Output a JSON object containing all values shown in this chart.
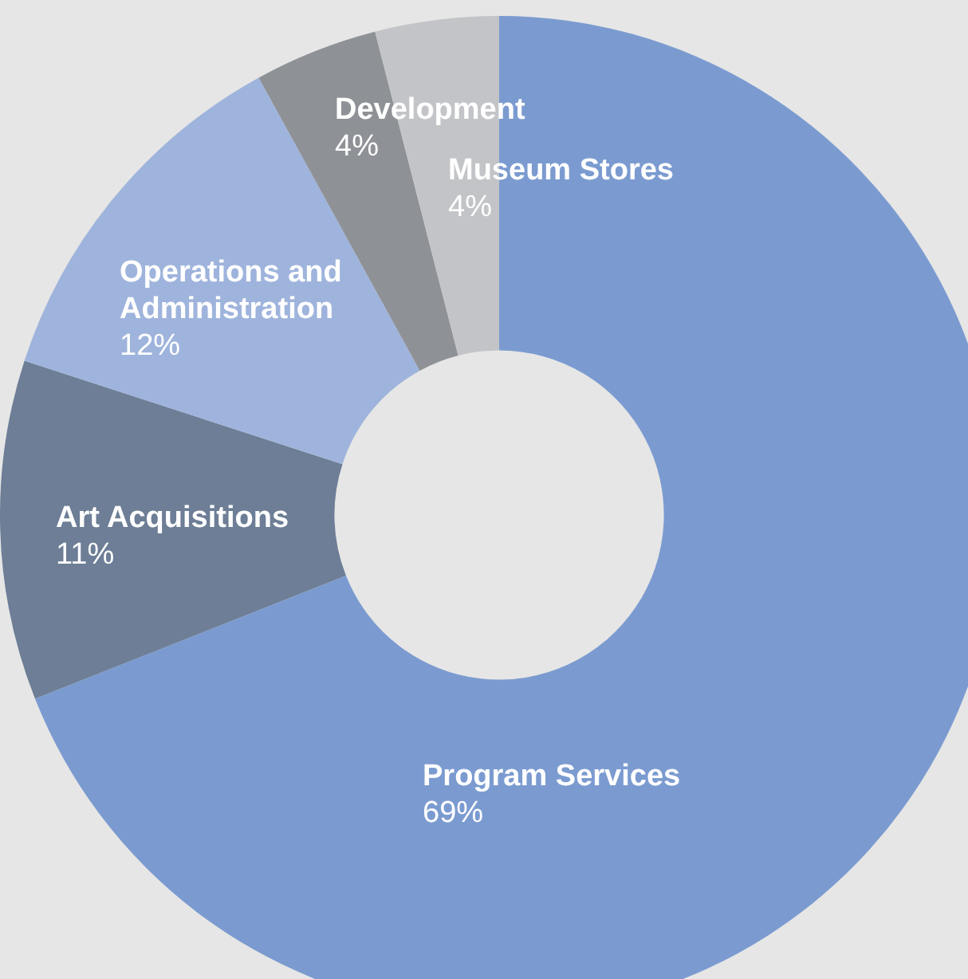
{
  "chart_data": {
    "type": "donut",
    "categories": [
      "Program Services",
      "Art Acquisitions",
      "Operations and Administration",
      "Development",
      "Museum Stores"
    ],
    "values": [
      69,
      11,
      12,
      4,
      4
    ],
    "colors": [
      "#7b9bd0",
      "#6d7e96",
      "#9fb4dc",
      "#8e9196",
      "#c3c4c7"
    ],
    "value_labels": [
      "69%",
      "11%",
      "12%",
      "4%",
      "4%"
    ],
    "legend": false
  }
}
